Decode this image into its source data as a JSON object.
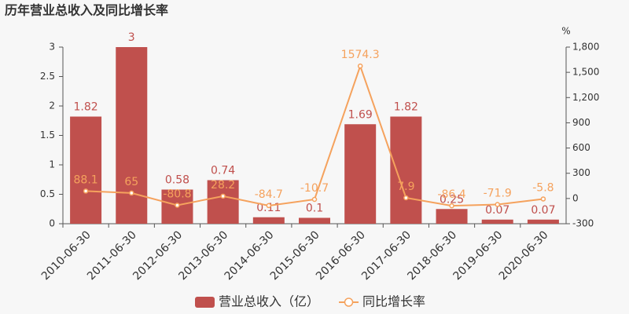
{
  "chart_data": {
    "type": "bar-line",
    "title": "历年营业总收入及同比增长率",
    "categories": [
      "2010-06-30",
      "2011-06-30",
      "2012-06-30",
      "2013-06-30",
      "2014-06-30",
      "2015-06-30",
      "2016-06-30",
      "2017-06-30",
      "2018-06-30",
      "2019-06-30",
      "2020-06-30"
    ],
    "series": [
      {
        "name": "营业总收入（亿）",
        "type": "bar",
        "color": "#c0504d",
        "values": [
          1.82,
          3,
          0.58,
          0.74,
          0.11,
          0.1,
          1.69,
          1.82,
          0.25,
          0.07,
          0.07
        ]
      },
      {
        "name": "同比增长率",
        "type": "line",
        "axis": "y2",
        "color": "#f5a25d",
        "values": [
          88.1,
          65,
          -80.8,
          28.2,
          -84.7,
          -10.7,
          1574.3,
          7.9,
          -86.4,
          -71.9,
          -5.8
        ]
      }
    ],
    "ylim": [
      0,
      3
    ],
    "yticks": [
      0,
      0.5,
      1,
      1.5,
      2,
      2.5,
      3
    ],
    "y2_label": "%",
    "y2lim": [
      -300,
      1800
    ],
    "y2ticks": [
      -300,
      0,
      300,
      600,
      900,
      {
        "value": 1200,
        "label": "1,200"
      },
      {
        "value": 1500,
        "label": "1,500"
      },
      {
        "value": 1800,
        "label": "1,800"
      }
    ],
    "legend": "bottom"
  }
}
